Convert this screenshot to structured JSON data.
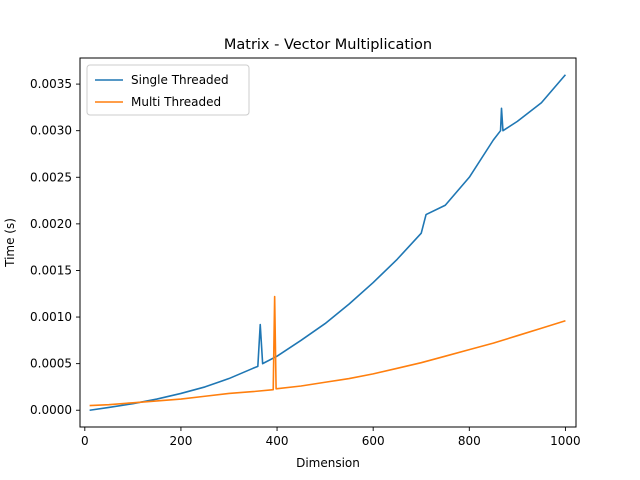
{
  "chart_data": {
    "type": "line",
    "title": "Matrix - Vector Multiplication",
    "xlabel": "Dimension",
    "ylabel": "Time (s)",
    "xlim": [
      -10,
      1022
    ],
    "ylim": [
      -0.00018,
      0.00378
    ],
    "xticks": [
      0,
      200,
      400,
      600,
      800,
      1000
    ],
    "xtick_labels": [
      "0",
      "200",
      "400",
      "600",
      "800",
      "1000"
    ],
    "yticks": [
      0.0,
      0.0005,
      0.001,
      0.0015,
      0.002,
      0.0025,
      0.003,
      0.0035
    ],
    "ytick_labels": [
      "0.0000",
      "0.0005",
      "0.0010",
      "0.0015",
      "0.0020",
      "0.0025",
      "0.0030",
      "0.0035"
    ],
    "grid": false,
    "legend_position": "upper-left",
    "series": [
      {
        "name": "Single Threaded",
        "color": "#1f77b4",
        "x": [
          10,
          50,
          100,
          150,
          200,
          250,
          300,
          350,
          360,
          365,
          370,
          400,
          450,
          500,
          550,
          600,
          650,
          700,
          710,
          750,
          800,
          850,
          865,
          867,
          870,
          900,
          950,
          1000
        ],
        "y": [
          0.0,
          3e-05,
          7e-05,
          0.00012,
          0.00018,
          0.00025,
          0.00034,
          0.00045,
          0.00047,
          0.00092,
          0.0005,
          0.00058,
          0.00075,
          0.00093,
          0.00114,
          0.00137,
          0.00162,
          0.0019,
          0.0021,
          0.0022,
          0.0025,
          0.0029,
          0.003,
          0.00324,
          0.003,
          0.0031,
          0.0033,
          0.0036
        ]
      },
      {
        "name": "Multi Threaded",
        "color": "#ff7f0e",
        "x": [
          10,
          50,
          100,
          150,
          200,
          250,
          300,
          350,
          392,
          395,
          398,
          450,
          500,
          550,
          600,
          650,
          700,
          750,
          800,
          850,
          900,
          950,
          1000
        ],
        "y": [
          5e-05,
          6e-05,
          8e-05,
          0.0001,
          0.00012,
          0.00015,
          0.00018,
          0.0002,
          0.00022,
          0.00122,
          0.00023,
          0.00026,
          0.0003,
          0.00034,
          0.00039,
          0.00045,
          0.00051,
          0.00058,
          0.00065,
          0.00072,
          0.0008,
          0.00088,
          0.00096
        ]
      }
    ]
  }
}
